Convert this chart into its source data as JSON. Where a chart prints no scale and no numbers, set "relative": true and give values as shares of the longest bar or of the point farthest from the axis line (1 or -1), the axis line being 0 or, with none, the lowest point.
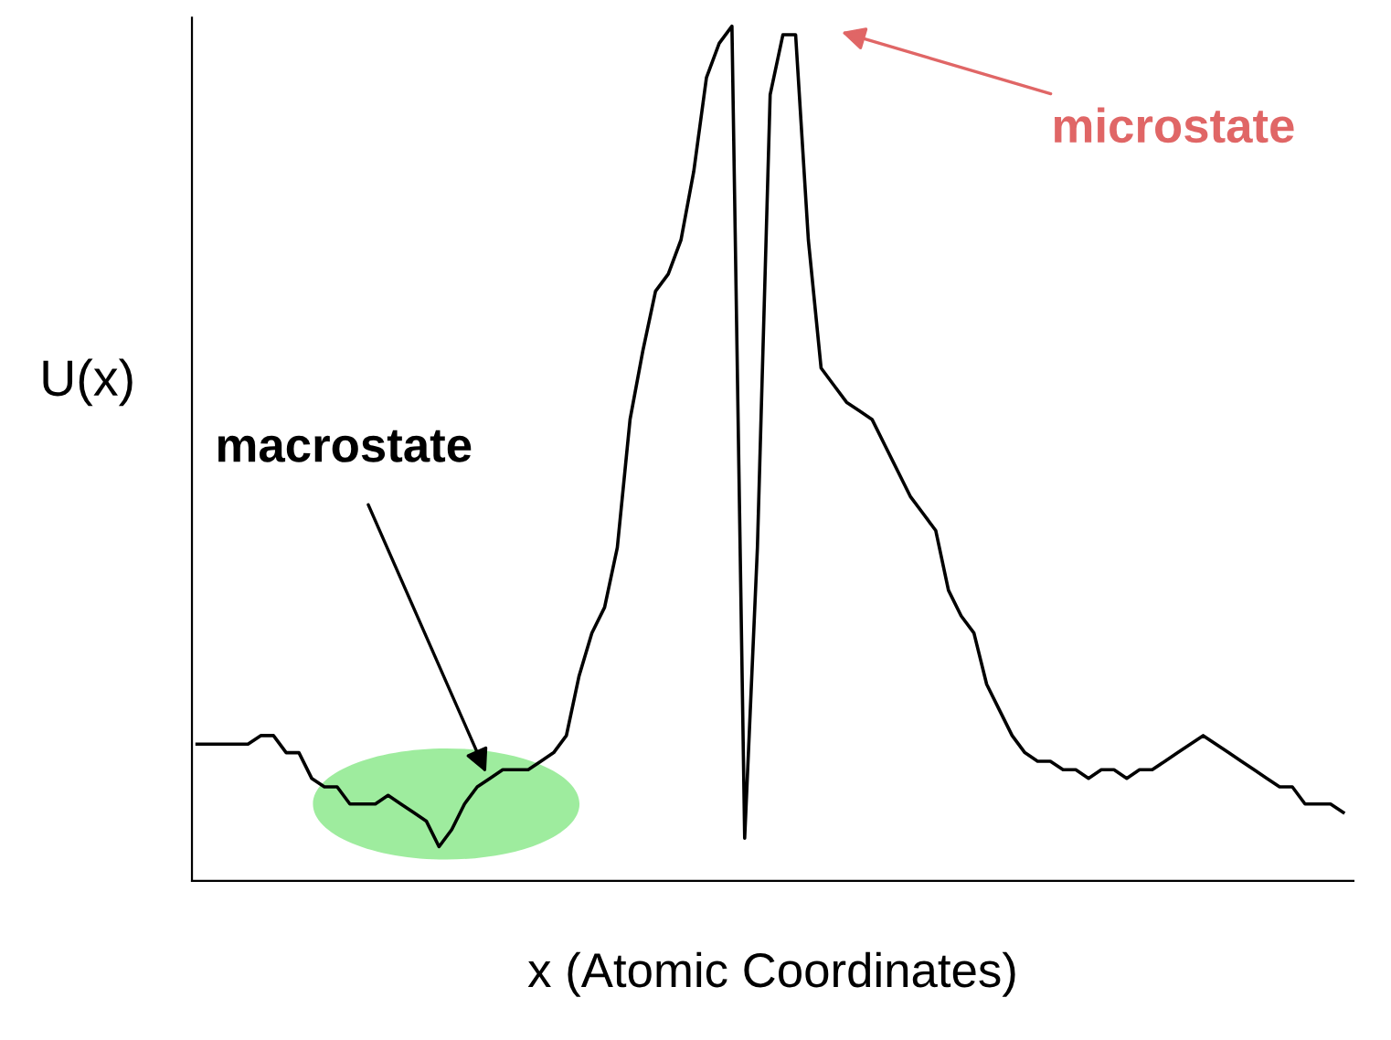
{
  "chart_data": {
    "type": "line",
    "relative": true,
    "xlabel": "x (Atomic Coordinates)",
    "ylabel": "U(x)",
    "color": "#000000",
    "grid": false,
    "marker": "none",
    "line_style": "solid",
    "tick_labels": false,
    "annotations": [
      "macrostate",
      "microstate"
    ],
    "categories": [
      null,
      null,
      null,
      null,
      null,
      null,
      null,
      null,
      null,
      null,
      null,
      null,
      null,
      null,
      null,
      null,
      null,
      null,
      null,
      null,
      null,
      null,
      null,
      null,
      null,
      null,
      null,
      null,
      null,
      null,
      null,
      null,
      null,
      null,
      null,
      null,
      null,
      null,
      null,
      null,
      null,
      null,
      null,
      null,
      null,
      null,
      null,
      null,
      null,
      null,
      null,
      null,
      null,
      null,
      null,
      null,
      null,
      null,
      null,
      null,
      null,
      null,
      null,
      null,
      null,
      null,
      null,
      null,
      null,
      null,
      null,
      null,
      null,
      null,
      null,
      null,
      null,
      null,
      null,
      null,
      null,
      null,
      null,
      null,
      null,
      null,
      null,
      null,
      null,
      null,
      null
    ],
    "values": [
      0.16,
      0.16,
      0.16,
      0.16,
      0.16,
      0.17,
      0.17,
      0.15,
      0.15,
      0.12,
      0.11,
      0.11,
      0.09,
      0.09,
      0.09,
      0.1,
      0.09,
      0.08,
      0.07,
      0.04,
      0.06,
      0.09,
      0.11,
      0.12,
      0.13,
      0.13,
      0.13,
      0.14,
      0.15,
      0.17,
      0.24,
      0.29,
      0.32,
      0.39,
      0.54,
      0.62,
      0.69,
      0.71,
      0.75,
      0.83,
      0.94,
      0.98,
      1.0,
      0.05,
      0.39,
      0.92,
      0.99,
      0.99,
      0.75,
      0.6,
      0.58,
      0.56,
      0.55,
      0.54,
      0.51,
      0.48,
      0.45,
      0.43,
      0.41,
      0.34,
      0.31,
      0.29,
      0.23,
      0.2,
      0.17,
      0.15,
      0.14,
      0.14,
      0.13,
      0.13,
      0.12,
      0.13,
      0.13,
      0.12,
      0.13,
      0.13,
      0.14,
      0.15,
      0.16,
      0.17,
      0.16,
      0.15,
      0.14,
      0.13,
      0.12,
      0.11,
      0.11,
      0.09,
      0.09,
      0.09,
      0.08
    ]
  }
}
